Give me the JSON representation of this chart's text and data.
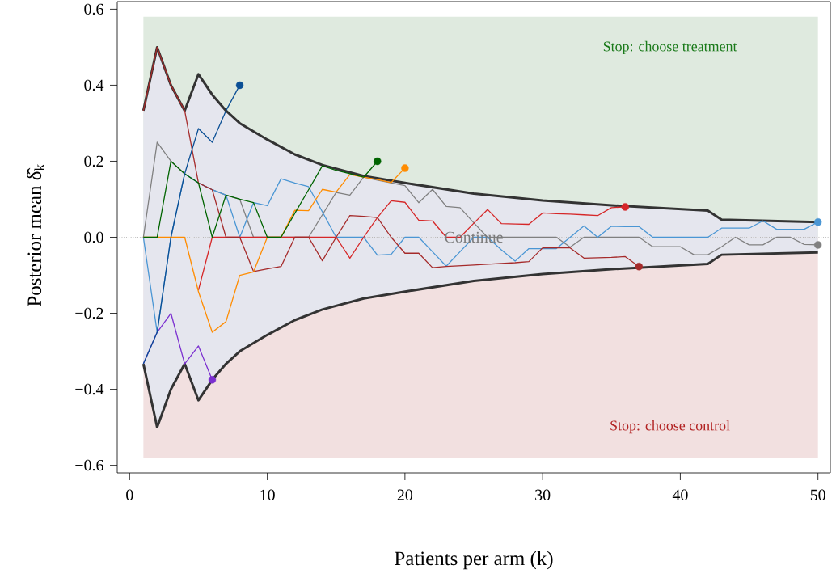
{
  "chart_data": {
    "type": "line",
    "xlabel": "Patients per arm (k)",
    "ylabel": "Posterior mean δ̂$_{k}$",
    "xlim": [
      -0.9,
      50.9
    ],
    "ylim": [
      -0.62,
      0.62
    ],
    "xticks": [
      0,
      10,
      20,
      30,
      40,
      50
    ],
    "yticks": [
      {
        "value": -0.6,
        "label": "−0.6"
      },
      {
        "value": -0.4,
        "label": "−0.4"
      },
      {
        "value": -0.2,
        "label": "−0.2"
      },
      {
        "value": 0,
        "label": "0.0"
      },
      0.2,
      0.4,
      0.6
    ],
    "bands": [
      {
        "axis": "y",
        "from": 0,
        "to": 0.58,
        "label": "Stop: choose treatment",
        "color": "#dfeadf"
      },
      {
        "axis": "y",
        "from": -0.58,
        "to": 0,
        "label": "Stop: choose control",
        "color": "#f2e0e0"
      }
    ],
    "ref_lines": [
      {
        "axis": "y",
        "value": 0,
        "label": "Continue",
        "color": "#999999",
        "line_style": "dotted"
      }
    ],
    "series": [
      {
        "type": "area",
        "color": "#333333",
        "x": [
          1,
          2,
          3,
          4,
          5,
          6,
          7,
          8,
          10,
          12,
          14,
          17,
          20,
          25,
          30,
          35,
          42,
          43,
          50
        ],
        "values": [
          0.333,
          0.5,
          0.4,
          0.333,
          0.429,
          0.375,
          0.333,
          0.3,
          0.257,
          0.218,
          0.19,
          0.161,
          0.143,
          0.115,
          0.097,
          0.084,
          0.07,
          0.046,
          0.04
        ]
      },
      {
        "type": "area",
        "color": "#333333",
        "x": [
          1,
          2,
          3,
          4,
          5,
          6,
          7,
          8,
          10,
          12,
          14,
          17,
          20,
          25,
          30,
          35,
          42,
          43,
          50
        ],
        "values": [
          -0.333,
          -0.5,
          -0.4,
          -0.333,
          -0.429,
          -0.375,
          -0.333,
          -0.3,
          -0.257,
          -0.218,
          -0.19,
          -0.161,
          -0.143,
          -0.115,
          -0.097,
          -0.084,
          -0.07,
          -0.046,
          -0.04
        ]
      },
      {
        "color": "#808080",
        "x": [
          1,
          2,
          3,
          4,
          5,
          6,
          7,
          8,
          9,
          10,
          11,
          12,
          13,
          14,
          15,
          16,
          17,
          18,
          19,
          20,
          21,
          22,
          23,
          24,
          25,
          26,
          27,
          28,
          29,
          30,
          31,
          32,
          33,
          34,
          35,
          36,
          37,
          38,
          39,
          40,
          41,
          42,
          43,
          44,
          45,
          46,
          47,
          48,
          49,
          50
        ],
        "values": [
          0,
          0.25,
          0.2,
          0.167,
          0.143,
          0.125,
          0.111,
          0.1,
          0,
          0,
          0,
          0,
          0,
          0.059,
          0.118,
          0.111,
          0.158,
          0.15,
          0.143,
          0.136,
          0.091,
          0.126,
          0.081,
          0.078,
          0.038,
          0,
          0,
          0,
          0,
          0,
          0,
          -0.026,
          0,
          0,
          0,
          0,
          0,
          -0.025,
          -0.025,
          -0.025,
          -0.046,
          -0.046,
          -0.025,
          0,
          -0.02,
          -0.02,
          0,
          0,
          -0.019,
          -0.02
        ]
      },
      {
        "color": "#4a96d4",
        "x": [
          1,
          2,
          3,
          4,
          5,
          6,
          7,
          8,
          9,
          10,
          11,
          12,
          13,
          14,
          15,
          16,
          17,
          18,
          19,
          20,
          21,
          22,
          23,
          24,
          25,
          26,
          27,
          28,
          29,
          30,
          31,
          32,
          33,
          34,
          35,
          36,
          37,
          38,
          39,
          40,
          41,
          42,
          43,
          44,
          45,
          46,
          47,
          48,
          49,
          50
        ],
        "values": [
          0,
          -0.25,
          0,
          0.167,
          0.143,
          0.125,
          0.111,
          0,
          0.091,
          0.083,
          0.154,
          0.143,
          0.133,
          0.067,
          0,
          0,
          0,
          -0.047,
          -0.045,
          0,
          0,
          -0.038,
          -0.076,
          -0.038,
          0,
          0,
          -0.033,
          -0.063,
          -0.03,
          -0.03,
          -0.03,
          0,
          0.03,
          0,
          0.029,
          0.028,
          0.028,
          0,
          0,
          0,
          0,
          0,
          0.024,
          0.024,
          0.024,
          0.043,
          0.021,
          0.021,
          0.021,
          0.04
        ]
      },
      {
        "color": "#d62728",
        "x": [
          5,
          6,
          7,
          8,
          9,
          10,
          11,
          12,
          13,
          14,
          15,
          16,
          17,
          18,
          19,
          20,
          21,
          22,
          23,
          24,
          25,
          26,
          27,
          28,
          29,
          30,
          31,
          32,
          33,
          34,
          35,
          36
        ],
        "values": [
          -0.139,
          0,
          0,
          0,
          0,
          0,
          0,
          0,
          0,
          0,
          0,
          -0.055,
          0,
          0.052,
          0.096,
          0.092,
          0.045,
          0.043,
          0,
          0,
          0.037,
          0.073,
          0.036,
          0.035,
          0.034,
          0.064,
          0.062,
          0.061,
          0.059,
          0.057,
          0.078,
          0.08
        ]
      },
      {
        "color": "#a52a2a",
        "x": [
          1,
          2,
          3,
          4,
          5,
          6,
          7,
          8,
          9,
          10,
          11,
          12,
          13,
          14,
          15,
          16,
          17,
          18,
          19,
          20,
          21,
          22,
          23,
          24,
          25,
          26,
          27,
          28,
          29,
          30,
          31,
          32,
          33,
          34,
          35,
          36,
          37
        ],
        "values": [
          0.333,
          0.5,
          0.4,
          0.333,
          0.143,
          0.125,
          0,
          0,
          -0.09,
          -0.083,
          -0.077,
          0,
          0,
          -0.062,
          0,
          0.057,
          0.055,
          0.052,
          0,
          -0.042,
          -0.042,
          -0.08,
          -0.077,
          -0.075,
          -0.073,
          -0.071,
          -0.069,
          -0.067,
          -0.064,
          -0.028,
          -0.028,
          -0.028,
          -0.055,
          -0.054,
          -0.053,
          -0.051,
          -0.077
        ]
      },
      {
        "color": "#ff8c00",
        "x": [
          1,
          2,
          3,
          4,
          5,
          6,
          7,
          8,
          9,
          10,
          11,
          12,
          13,
          14,
          15,
          16,
          17,
          18,
          19,
          20
        ],
        "values": [
          0,
          0,
          0,
          0,
          -0.143,
          -0.25,
          -0.222,
          -0.1,
          -0.091,
          0,
          0,
          0.071,
          0.07,
          0.126,
          0.119,
          0.165,
          0.158,
          0.152,
          0.144,
          0.182
        ]
      },
      {
        "color": "#006400",
        "x": [
          1,
          2,
          3,
          4,
          5,
          6,
          7,
          8,
          9,
          10,
          11,
          12,
          13,
          14,
          15,
          16,
          17,
          18
        ],
        "values": [
          0,
          0,
          0.2,
          0.167,
          0.143,
          0,
          0.111,
          0.1,
          0.091,
          0,
          0,
          0.063,
          0.125,
          0.188,
          0.176,
          0.167,
          0.158,
          0.2
        ]
      },
      {
        "color": "#7b2fd0",
        "x": [
          1,
          2,
          3,
          4,
          5,
          6
        ],
        "values": [
          -0.333,
          -0.25,
          -0.2,
          -0.333,
          -0.286,
          -0.375
        ]
      },
      {
        "color": "#0b4f95",
        "x": [
          1,
          2,
          3,
          4,
          5,
          6,
          7,
          8
        ],
        "values": [
          -0.333,
          -0.25,
          0,
          0.167,
          0.286,
          0.25,
          0.333,
          0.4
        ]
      }
    ]
  }
}
